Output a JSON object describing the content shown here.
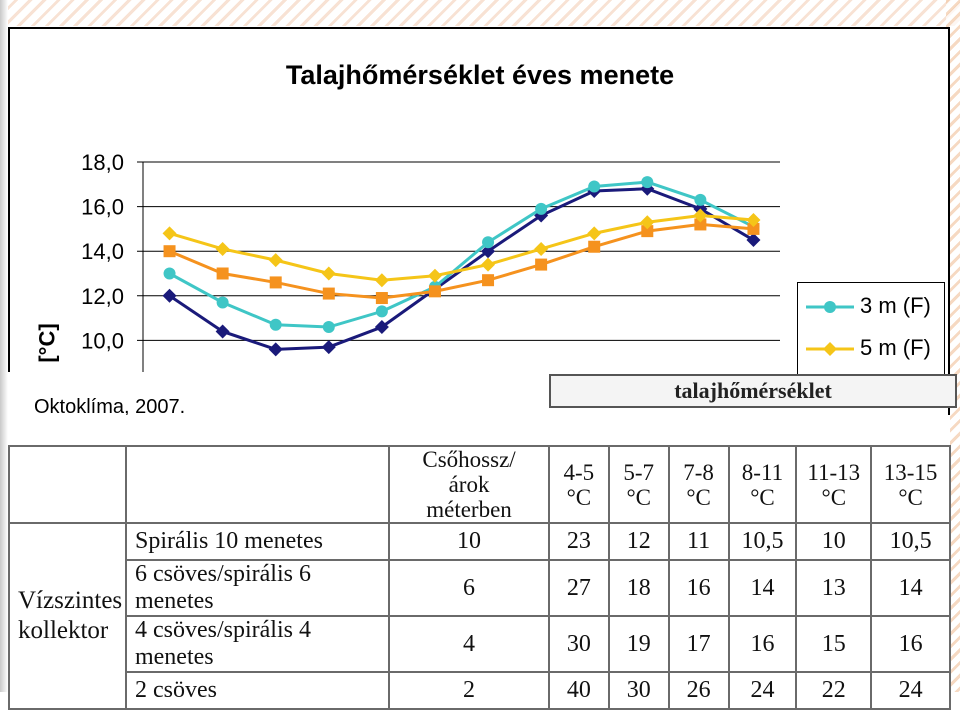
{
  "chart_data": {
    "type": "line",
    "title": "Talajhőmérséklet éves menete",
    "ylabel": "[°C]",
    "xlabel": "",
    "ylim": [
      8,
      18
    ],
    "ytick_labels": [
      "10,0",
      "12,0",
      "14,0",
      "16,0",
      "18,0"
    ],
    "grid": true,
    "legend_position": "right",
    "x": [
      1,
      2,
      3,
      4,
      5,
      6,
      7,
      8,
      9,
      10,
      11,
      12
    ],
    "series": [
      {
        "name": "",
        "color": "#1a1a7a",
        "marker": "diamond",
        "values": [
          12.0,
          10.4,
          9.6,
          9.7,
          10.6,
          12.3,
          14.0,
          15.6,
          16.7,
          16.8,
          15.9,
          14.5
        ]
      },
      {
        "name": "3 m (F)",
        "color": "#3fc6c6",
        "marker": "circle",
        "values": [
          13.0,
          11.7,
          10.7,
          10.6,
          11.3,
          12.4,
          14.4,
          15.9,
          16.9,
          17.1,
          16.3,
          15.1
        ]
      },
      {
        "name": "",
        "color": "#f5921e",
        "marker": "square",
        "values": [
          14.0,
          13.0,
          12.6,
          12.1,
          11.9,
          12.2,
          12.7,
          13.4,
          14.2,
          14.9,
          15.2,
          15.0
        ]
      },
      {
        "name": "5 m (F)",
        "color": "#f5c518",
        "marker": "diamond",
        "values": [
          14.8,
          14.1,
          13.6,
          13.0,
          12.7,
          12.9,
          13.4,
          14.1,
          14.8,
          15.3,
          15.6,
          15.4
        ]
      }
    ]
  },
  "legend": {
    "items": [
      "3 m (F)",
      "5 m (F)"
    ]
  },
  "source": "Oktoklíma, 2007.",
  "table": {
    "title": "talajhőmérséklet",
    "headers": [
      "Csőhossz/árok méterben",
      "4-5 °C",
      "5-7 °C",
      "7-8 °C",
      "8-11 °C",
      "11-13 °C",
      "13-15 °C"
    ],
    "group_label": "Vízszintes kollektor",
    "rows": [
      {
        "name": "Spirális 10 menetes",
        "values": [
          "10",
          "23",
          "12",
          "11",
          "10,5",
          "10",
          "10,5"
        ]
      },
      {
        "name": "6 csöves/spirális 6 menetes",
        "values": [
          "6",
          "27",
          "18",
          "16",
          "14",
          "13",
          "14"
        ]
      },
      {
        "name": "4 csöves/spirális 4 menetes",
        "values": [
          "4",
          "30",
          "19",
          "17",
          "16",
          "15",
          "16"
        ]
      },
      {
        "name": "2 csöves",
        "values": [
          "2",
          "40",
          "30",
          "26",
          "24",
          "22",
          "24"
        ]
      }
    ]
  }
}
